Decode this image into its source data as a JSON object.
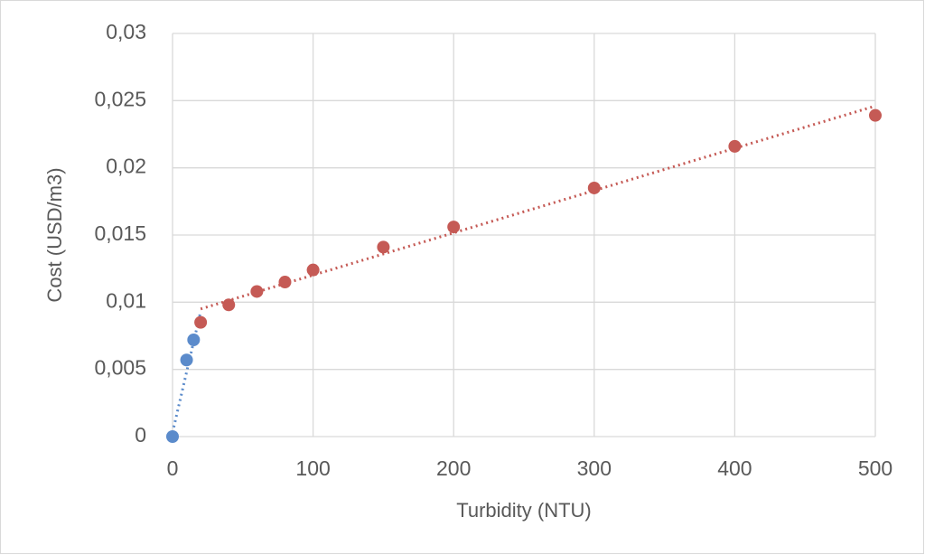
{
  "chart_data": {
    "type": "scatter",
    "x_label": "Turbidity  (NTU)",
    "y_label": "Cost (USD/m3)",
    "xlim": [
      0,
      500
    ],
    "xticks": [
      0,
      100,
      200,
      300,
      400,
      500
    ],
    "ylim": [
      0,
      0.03
    ],
    "yticks": [
      0,
      {
        "value": 0.005,
        "label": "0,005"
      },
      {
        "value": 0.01,
        "label": "0,01"
      },
      {
        "value": 0.015,
        "label": "0,015"
      },
      {
        "value": 0.02,
        "label": "0,02"
      },
      {
        "value": 0.025,
        "label": "0,025"
      },
      {
        "value": 0.03,
        "label": "0,03"
      }
    ],
    "grid": true,
    "series": [
      {
        "color": "#5b8bcb",
        "x": [
          0,
          10,
          15
        ],
        "values": [
          0,
          0.0057,
          0.0072
        ],
        "trendline": {
          "x": [
            0,
            20
          ],
          "values": [
            0.0003,
            0.0093
          ]
        }
      },
      {
        "color": "#c55a55",
        "x": [
          20,
          40,
          60,
          80,
          100,
          150,
          200,
          300,
          400,
          500
        ],
        "values": [
          0.0085,
          0.0098,
          0.0108,
          0.0115,
          0.0124,
          0.0141,
          0.0156,
          0.0185,
          0.0216,
          0.0239
        ],
        "trendline": {
          "x": [
            20,
            500
          ],
          "values": [
            0.0095,
            0.0246
          ]
        }
      }
    ]
  }
}
